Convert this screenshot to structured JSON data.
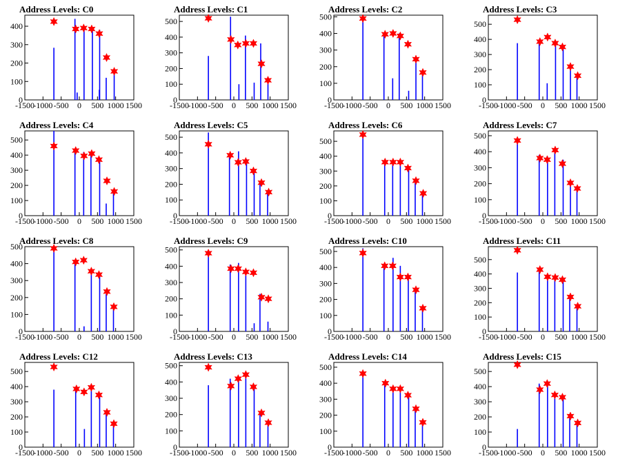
{
  "chart_data": [
    {
      "type": "bar",
      "title": "Address Levels: C0",
      "xlim": [
        -1500,
        1500
      ],
      "ylim": [
        0,
        460
      ],
      "yticks": [
        0,
        100,
        200,
        300,
        400
      ],
      "xticks": [
        -1500,
        -1000,
        -500,
        0,
        500,
        1000,
        1500
      ],
      "x": [
        -700,
        -120,
        -60,
        130,
        360,
        550,
        560,
        740,
        960
      ],
      "values": [
        283,
        440,
        40,
        395,
        385,
        55,
        380,
        120,
        160
      ],
      "peaks": {
        "x": [
          -700,
          -100,
          120,
          340,
          550,
          750,
          960
        ],
        "y": [
          425,
          385,
          390,
          385,
          360,
          230,
          155
        ]
      }
    },
    {
      "type": "bar",
      "title": "Address Levels: C1",
      "xlim": [
        -1500,
        1500
      ],
      "ylim": [
        0,
        540
      ],
      "yticks": [
        0,
        100,
        200,
        300,
        400,
        500
      ],
      "xticks": [
        -1500,
        -1000,
        -500,
        0,
        500,
        1000,
        1500
      ],
      "x": [
        -700,
        -90,
        140,
        320,
        560,
        740,
        940
      ],
      "values": [
        280,
        530,
        100,
        410,
        110,
        360,
        140
      ],
      "peaks": {
        "x": [
          -700,
          -80,
          110,
          330,
          540,
          760,
          940
        ],
        "y": [
          520,
          385,
          350,
          360,
          360,
          230,
          125
        ]
      }
    },
    {
      "type": "bar",
      "title": "Address Levels: C2",
      "xlim": [
        -1500,
        1500
      ],
      "ylim": [
        0,
        510
      ],
      "yticks": [
        0,
        100,
        200,
        300,
        400,
        500
      ],
      "xticks": [
        -1500,
        -1000,
        -500,
        0,
        500,
        1000,
        1500
      ],
      "x": [
        -700,
        -120,
        120,
        300,
        560,
        760,
        940
      ],
      "values": [
        490,
        400,
        130,
        400,
        55,
        230,
        160
      ],
      "peaks": {
        "x": [
          -700,
          -90,
          130,
          330,
          540,
          760,
          950
        ],
        "y": [
          490,
          395,
          400,
          385,
          335,
          245,
          165
        ]
      }
    },
    {
      "type": "bar",
      "title": "Address Levels: C3",
      "xlim": [
        -1500,
        1500
      ],
      "ylim": [
        0,
        560
      ],
      "yticks": [
        0,
        100,
        200,
        300,
        400,
        500
      ],
      "xticks": [
        -1500,
        -1000,
        -500,
        0,
        500,
        1000,
        1500
      ],
      "x": [
        -700,
        -100,
        120,
        350,
        560,
        760,
        940
      ],
      "values": [
        375,
        390,
        110,
        370,
        340,
        225,
        150
      ],
      "peaks": {
        "x": [
          -700,
          -80,
          130,
          340,
          540,
          760,
          960
        ],
        "y": [
          530,
          385,
          415,
          375,
          350,
          220,
          160
        ]
      }
    },
    {
      "type": "bar",
      "title": "Address Levels: C4",
      "xlim": [
        -1500,
        1500
      ],
      "ylim": [
        0,
        560
      ],
      "yticks": [
        0,
        100,
        200,
        300,
        400,
        500
      ],
      "xticks": [
        -1500,
        -1000,
        -500,
        0,
        500,
        1000,
        1500
      ],
      "x": [
        -700,
        -120,
        120,
        320,
        560,
        740,
        940
      ],
      "values": [
        560,
        440,
        420,
        420,
        370,
        80,
        160
      ],
      "peaks": {
        "x": [
          -700,
          -100,
          130,
          340,
          540,
          760,
          960
        ],
        "y": [
          460,
          430,
          395,
          410,
          370,
          230,
          160
        ]
      }
    },
    {
      "type": "bar",
      "title": "Address Levels: C5",
      "xlim": [
        -1500,
        1500
      ],
      "ylim": [
        0,
        540
      ],
      "yticks": [
        0,
        100,
        200,
        300,
        400,
        500
      ],
      "xticks": [
        -1500,
        -1000,
        -500,
        0,
        500,
        1000,
        1500
      ],
      "x": [
        -700,
        -120,
        130,
        350,
        560,
        720,
        930
      ],
      "values": [
        530,
        390,
        410,
        360,
        280,
        220,
        150
      ],
      "peaks": {
        "x": [
          -700,
          -100,
          120,
          330,
          540,
          760,
          960
        ],
        "y": [
          455,
          385,
          340,
          345,
          285,
          210,
          150
        ]
      }
    },
    {
      "type": "bar",
      "title": "Address Levels: C6",
      "xlim": [
        -1500,
        1500
      ],
      "ylim": [
        0,
        570
      ],
      "yticks": [
        0,
        100,
        200,
        300,
        400,
        500
      ],
      "xticks": [
        -1500,
        -1000,
        -500,
        0,
        500,
        1000,
        1500
      ],
      "x": [
        -700,
        -100,
        120,
        330,
        560,
        740,
        940
      ],
      "values": [
        550,
        360,
        360,
        360,
        310,
        220,
        140
      ],
      "peaks": {
        "x": [
          -700,
          -90,
          130,
          330,
          540,
          760,
          960
        ],
        "y": [
          545,
          360,
          360,
          360,
          320,
          235,
          150
        ]
      }
    },
    {
      "type": "bar",
      "title": "Address Levels: C7",
      "xlim": [
        -1500,
        1500
      ],
      "ylim": [
        0,
        530
      ],
      "yticks": [
        0,
        100,
        200,
        300,
        400,
        500
      ],
      "xticks": [
        -1500,
        -1000,
        -500,
        0,
        500,
        1000,
        1500
      ],
      "x": [
        -700,
        -100,
        130,
        330,
        560,
        760,
        940
      ],
      "values": [
        460,
        380,
        370,
        420,
        350,
        210,
        180
      ],
      "peaks": {
        "x": [
          -700,
          -80,
          120,
          340,
          540,
          760,
          950
        ],
        "y": [
          470,
          360,
          350,
          410,
          325,
          205,
          170
        ]
      }
    },
    {
      "type": "bar",
      "title": "Address Levels: C8",
      "xlim": [
        -1500,
        1500
      ],
      "ylim": [
        0,
        500
      ],
      "yticks": [
        0,
        100,
        200,
        300,
        400,
        500
      ],
      "xticks": [
        -1500,
        -1000,
        -500,
        0,
        500,
        1000,
        1500
      ],
      "x": [
        -700,
        -120,
        130,
        330,
        560,
        740,
        940
      ],
      "values": [
        500,
        410,
        30,
        360,
        340,
        220,
        140
      ],
      "peaks": {
        "x": [
          -700,
          -100,
          120,
          330,
          540,
          760,
          950
        ],
        "y": [
          490,
          410,
          420,
          355,
          335,
          235,
          145
        ]
      }
    },
    {
      "type": "bar",
      "title": "Address Levels: C9",
      "xlim": [
        -1500,
        1500
      ],
      "ylim": [
        0,
        520
      ],
      "yticks": [
        0,
        100,
        200,
        300,
        400,
        500
      ],
      "xticks": [
        -1500,
        -1000,
        -500,
        0,
        500,
        1000,
        1500
      ],
      "x": [
        -700,
        -100,
        130,
        330,
        560,
        720,
        940
      ],
      "values": [
        500,
        410,
        420,
        360,
        50,
        230,
        60
      ],
      "peaks": {
        "x": [
          -700,
          -80,
          120,
          330,
          540,
          760,
          950
        ],
        "y": [
          480,
          385,
          385,
          365,
          360,
          210,
          200
        ]
      }
    },
    {
      "type": "bar",
      "title": "Address Levels: C10",
      "xlim": [
        -1500,
        1500
      ],
      "ylim": [
        0,
        530
      ],
      "yticks": [
        0,
        100,
        200,
        300,
        400,
        500
      ],
      "xticks": [
        -1500,
        -1000,
        -500,
        0,
        500,
        1000,
        1500
      ],
      "x": [
        -700,
        -120,
        130,
        330,
        550,
        740,
        940
      ],
      "values": [
        520,
        410,
        460,
        410,
        340,
        260,
        150
      ],
      "peaks": {
        "x": [
          -700,
          -100,
          120,
          330,
          540,
          760,
          950
        ],
        "y": [
          490,
          410,
          410,
          340,
          340,
          260,
          145
        ]
      }
    },
    {
      "type": "bar",
      "title": "Address Levels: C11",
      "xlim": [
        -1500,
        1500
      ],
      "ylim": [
        0,
        590
      ],
      "yticks": [
        0,
        100,
        200,
        300,
        400,
        500
      ],
      "xticks": [
        -1500,
        -1000,
        -500,
        0,
        500,
        1000,
        1500
      ],
      "x": [
        -700,
        -100,
        130,
        330,
        560,
        740,
        940
      ],
      "values": [
        410,
        430,
        380,
        380,
        360,
        250,
        180
      ],
      "peaks": {
        "x": [
          -700,
          -80,
          130,
          340,
          540,
          760,
          960
        ],
        "y": [
          565,
          430,
          380,
          375,
          360,
          240,
          175
        ]
      }
    },
    {
      "type": "bar",
      "title": "Address Levels: C12",
      "xlim": [
        -1500,
        1500
      ],
      "ylim": [
        0,
        560
      ],
      "yticks": [
        0,
        100,
        200,
        300,
        400,
        500
      ],
      "xticks": [
        -1500,
        -1000,
        -500,
        0,
        500,
        1000,
        1500
      ],
      "x": [
        -700,
        -100,
        140,
        330,
        560,
        740,
        940
      ],
      "values": [
        380,
        380,
        120,
        400,
        340,
        230,
        150
      ],
      "peaks": {
        "x": [
          -700,
          -80,
          130,
          330,
          540,
          760,
          950
        ],
        "y": [
          530,
          385,
          365,
          395,
          345,
          230,
          155
        ]
      }
    },
    {
      "type": "bar",
      "title": "Address Levels: C13",
      "xlim": [
        -1500,
        1500
      ],
      "ylim": [
        0,
        520
      ],
      "yticks": [
        0,
        100,
        200,
        300,
        400,
        500
      ],
      "xticks": [
        -1500,
        -1000,
        -500,
        0,
        500,
        1000,
        1500
      ],
      "x": [
        -700,
        -100,
        130,
        330,
        560,
        720,
        940
      ],
      "values": [
        380,
        420,
        410,
        430,
        360,
        220,
        150
      ],
      "peaks": {
        "x": [
          -700,
          -80,
          120,
          330,
          540,
          760,
          950
        ],
        "y": [
          490,
          375,
          420,
          445,
          370,
          210,
          150
        ]
      }
    },
    {
      "type": "bar",
      "title": "Address Levels: C14",
      "xlim": [
        -1500,
        1500
      ],
      "ylim": [
        0,
        530
      ],
      "yticks": [
        0,
        100,
        200,
        300,
        400,
        500
      ],
      "xticks": [
        -1500,
        -1000,
        -500,
        0,
        500,
        1000,
        1500
      ],
      "x": [
        -700,
        -100,
        130,
        330,
        560,
        740,
        940
      ],
      "values": [
        460,
        390,
        370,
        360,
        320,
        230,
        150
      ],
      "peaks": {
        "x": [
          -700,
          -80,
          130,
          330,
          540,
          760,
          950
        ],
        "y": [
          460,
          400,
          365,
          365,
          325,
          240,
          155
        ]
      }
    },
    {
      "type": "bar",
      "title": "Address Levels: C15",
      "xlim": [
        -1500,
        1500
      ],
      "ylim": [
        0,
        560
      ],
      "yticks": [
        0,
        100,
        200,
        300,
        400,
        500
      ],
      "xticks": [
        -1500,
        -1000,
        -500,
        0,
        500,
        1000,
        1500
      ],
      "x": [
        -700,
        -100,
        130,
        330,
        560,
        740,
        940
      ],
      "values": [
        120,
        420,
        410,
        350,
        340,
        220,
        160
      ],
      "peaks": {
        "x": [
          -700,
          -80,
          120,
          330,
          540,
          760,
          960
        ],
        "y": [
          545,
          380,
          420,
          345,
          330,
          205,
          160
        ]
      }
    }
  ],
  "colors": {
    "bar": "#0000ff",
    "marker": "#ff0000",
    "axis": "#000000"
  }
}
